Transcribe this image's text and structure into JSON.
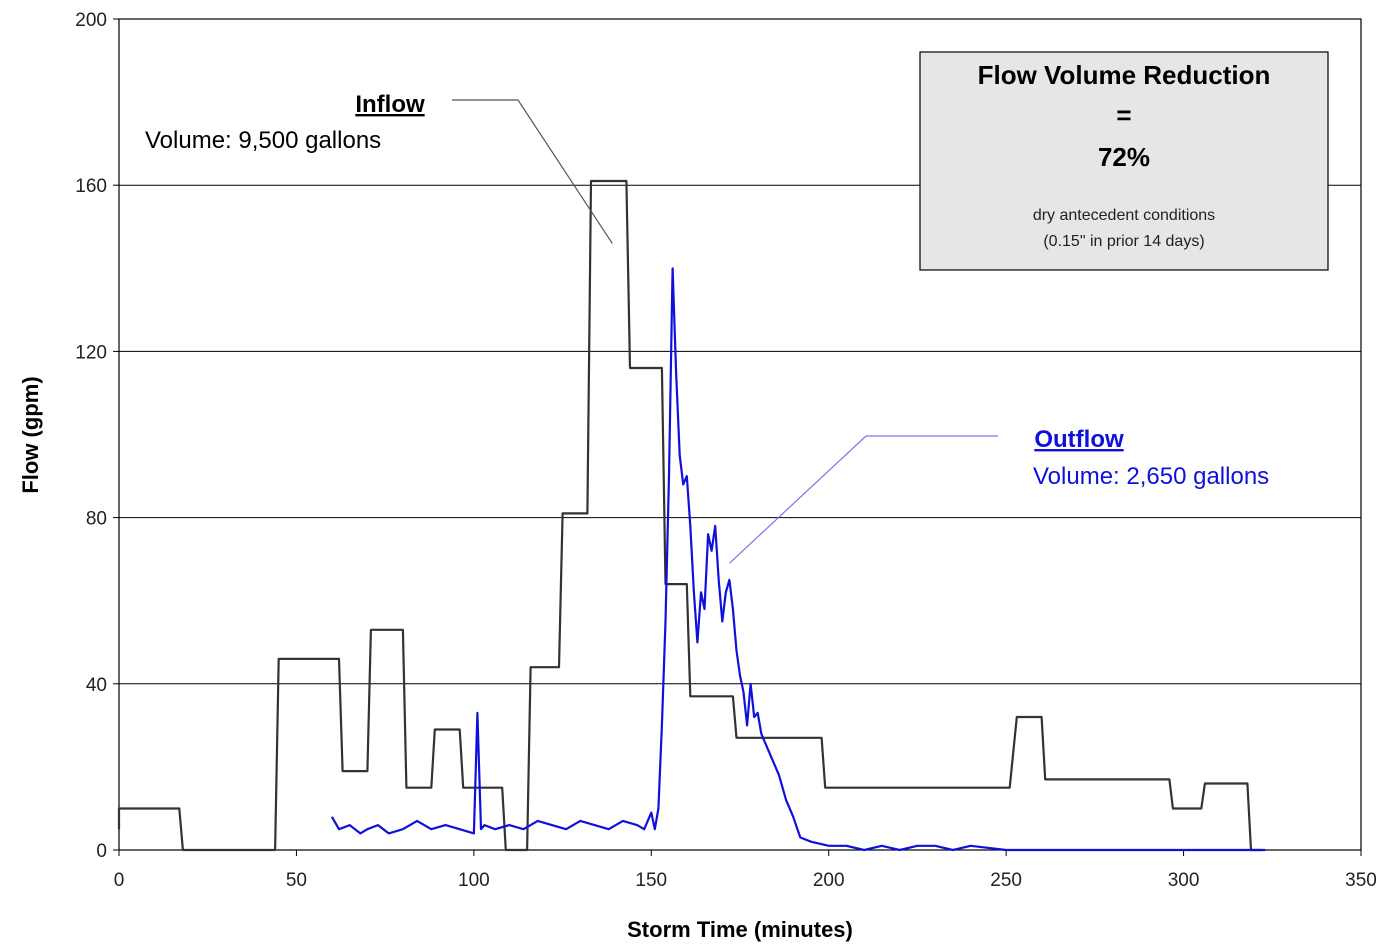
{
  "chart_data": {
    "type": "line",
    "xlabel": "Storm Time (minutes)",
    "ylabel": "Flow (gpm)",
    "xlim": [
      0,
      350
    ],
    "ylim": [
      0,
      200
    ],
    "x_ticks": [
      0,
      50,
      100,
      150,
      200,
      250,
      300,
      350
    ],
    "y_ticks": [
      0,
      40,
      80,
      120,
      160,
      200
    ],
    "grid": "horizontal",
    "series": [
      {
        "name": "Inflow",
        "color": "#333333",
        "x": [
          0,
          0,
          17,
          18,
          44,
          45,
          62,
          63,
          70,
          71,
          80,
          81,
          88,
          89,
          96,
          97,
          102,
          103,
          108,
          109,
          115,
          116,
          124,
          125,
          132,
          133,
          143,
          144,
          149,
          150,
          153,
          154,
          160,
          161,
          173,
          174,
          198,
          199,
          251,
          253,
          260,
          261,
          296,
          297,
          305,
          306,
          318,
          319,
          322
        ],
        "y": [
          5,
          10,
          10,
          0,
          0,
          46,
          46,
          19,
          19,
          53,
          53,
          15,
          15,
          29,
          29,
          15,
          15,
          15,
          15,
          0,
          0,
          44,
          44,
          81,
          81,
          161,
          161,
          116,
          116,
          116,
          116,
          64,
          64,
          37,
          37,
          27,
          27,
          15,
          15,
          32,
          32,
          17,
          17,
          10,
          10,
          16,
          16,
          0,
          0
        ]
      },
      {
        "name": "Outflow",
        "color": "#1010dd",
        "x": [
          60,
          62,
          65,
          68,
          70,
          73,
          76,
          80,
          84,
          88,
          92,
          96,
          100,
          101,
          102,
          103,
          106,
          110,
          114,
          118,
          122,
          126,
          130,
          134,
          138,
          142,
          146,
          148,
          150,
          151,
          152,
          153,
          154,
          155,
          156,
          157,
          158,
          159,
          160,
          161,
          162,
          163,
          164,
          165,
          166,
          167,
          168,
          169,
          170,
          171,
          172,
          173,
          174,
          175,
          176,
          177,
          178,
          179,
          180,
          181,
          182,
          184,
          186,
          188,
          190,
          192,
          195,
          200,
          205,
          210,
          215,
          220,
          225,
          230,
          235,
          240,
          250,
          280,
          323
        ],
        "y": [
          8,
          5,
          6,
          4,
          5,
          6,
          4,
          5,
          7,
          5,
          6,
          5,
          4,
          33,
          5,
          6,
          5,
          6,
          5,
          7,
          6,
          5,
          7,
          6,
          5,
          7,
          6,
          5,
          9,
          5,
          10,
          30,
          55,
          90,
          140,
          115,
          95,
          88,
          90,
          78,
          62,
          50,
          62,
          58,
          76,
          72,
          78,
          65,
          55,
          62,
          65,
          58,
          48,
          42,
          38,
          30,
          40,
          32,
          33,
          28,
          26,
          22,
          18,
          12,
          8,
          3,
          2,
          1,
          1,
          0,
          1,
          0,
          1,
          1,
          0,
          1,
          0,
          0,
          0
        ]
      }
    ],
    "annotations": {
      "inflow_title": "Inflow",
      "inflow_volume": "Volume: 9,500 gallons",
      "outflow_title": "Outflow",
      "outflow_volume": "Volume: 2,650 gallons",
      "box_line1": "Flow Volume Reduction",
      "box_line2": "=",
      "box_line3": "72%",
      "box_note1": "dry antecedent conditions",
      "box_note2": "(0.15\" in prior 14 days)"
    }
  }
}
